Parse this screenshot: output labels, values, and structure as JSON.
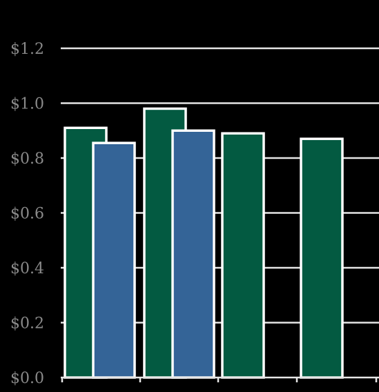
{
  "chart_data": {
    "type": "bar",
    "title": "",
    "xlabel": "",
    "ylabel": "",
    "ylim": [
      0,
      1.2
    ],
    "yticks": [
      {
        "value": 0.0,
        "label": "$0.0"
      },
      {
        "value": 0.2,
        "label": "$0.2"
      },
      {
        "value": 0.4,
        "label": "$0.4"
      },
      {
        "value": 0.6,
        "label": "$0.6"
      },
      {
        "value": 0.8,
        "label": "$0.8"
      },
      {
        "value": 1.0,
        "label": "$1.0"
      },
      {
        "value": 1.2,
        "label": "$1.2"
      }
    ],
    "grid": true,
    "legend": "none",
    "categories": [
      "",
      "",
      "",
      ""
    ],
    "series": [
      {
        "color": "#035a41",
        "values": [
          0.91,
          0.98,
          0.89,
          0.87
        ]
      },
      {
        "color": "#346497",
        "values": [
          0.855,
          0.9,
          null,
          null
        ]
      }
    ]
  }
}
